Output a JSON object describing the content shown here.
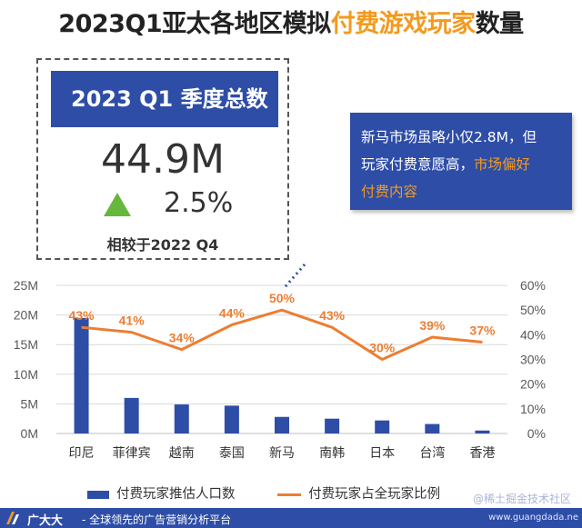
{
  "title": {
    "prefix": "2023Q1亚太各地区模拟",
    "highlight": "付费游戏玩家",
    "suffix": "数量"
  },
  "kpi": {
    "header": "2023 Q1 季度总数",
    "value": "44.9M",
    "change": "2.5%",
    "compare": "相较于2022 Q4",
    "trend_icon": "up-triangle-icon"
  },
  "callout": {
    "line1": "新马市场虽略小仅2.8M，但",
    "line2_plain": "玩家付费意愿高，",
    "line2_highlight": "市场偏好",
    "line3_highlight": "付费内容"
  },
  "chart_data": {
    "type": "bar",
    "categories": [
      "印尼",
      "菲律宾",
      "越南",
      "泰国",
      "新马",
      "南韩",
      "日本",
      "台湾",
      "香港"
    ],
    "series": [
      {
        "name": "付费玩家推估人口数",
        "type": "bar",
        "axis": "left",
        "unit": "M",
        "values": [
          19.5,
          6.0,
          4.9,
          4.7,
          2.8,
          2.5,
          2.2,
          1.6,
          0.5
        ]
      },
      {
        "name": "付费玩家占全玩家比例",
        "type": "line",
        "axis": "right",
        "unit": "%",
        "values": [
          43,
          41,
          34,
          44,
          50,
          43,
          30,
          39,
          37
        ],
        "labels": [
          "43%",
          "41%",
          "34%",
          "44%",
          "50%",
          "43%",
          "30%",
          "39%",
          "37%"
        ]
      }
    ],
    "y_left": {
      "min": 0,
      "max": 25,
      "ticks": [
        "0M",
        "5M",
        "10M",
        "15M",
        "20M",
        "25M"
      ]
    },
    "y_right": {
      "min": 0,
      "max": 60,
      "ticks": [
        "0%",
        "10%",
        "20%",
        "30%",
        "40%",
        "50%",
        "60%"
      ]
    },
    "grid": true,
    "legend": "bottom",
    "colors": {
      "bar": "#2e4da7",
      "line": "#ed7d31",
      "grid": "#d9d9d9"
    }
  },
  "footer": {
    "brand": "广大大",
    "slogan": "- 全球领先的广告营销分析平台",
    "url": "www.guangdada.ne"
  },
  "watermark": "@稀土掘金技术社区"
}
